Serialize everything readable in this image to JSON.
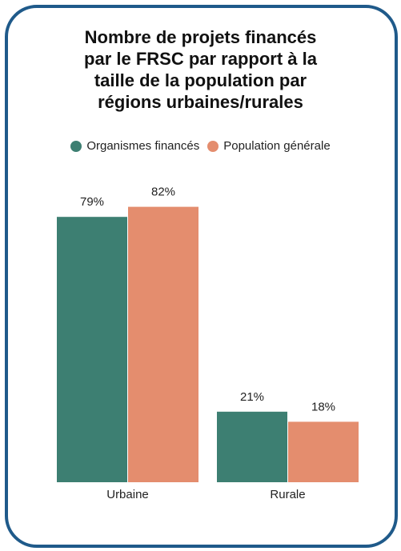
{
  "chart_data": {
    "type": "bar",
    "title": "Nombre de projets financés\npar le FRSC par rapport à la\ntaille de la population par\nrégions urbaines/rurales",
    "categories": [
      "Urbaine",
      "Rurale"
    ],
    "series": [
      {
        "name": "Organismes financés",
        "values": [
          79,
          21
        ],
        "labels": [
          "79%",
          "21%"
        ],
        "color": "#3d7f72"
      },
      {
        "name": "Population générale",
        "values": [
          82,
          18
        ],
        "labels": [
          "82%",
          "18%"
        ],
        "color": "#e48d6e"
      }
    ],
    "ylim": [
      0,
      100
    ],
    "grid": false,
    "legend_position": "top",
    "border_color": "#1f5a8a"
  }
}
